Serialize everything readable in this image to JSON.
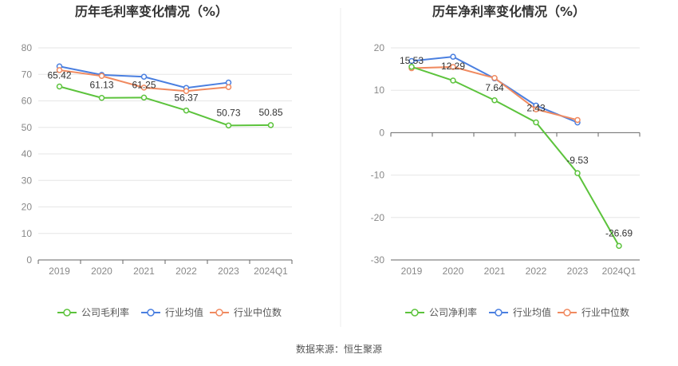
{
  "source_note": "数据来源：恒生聚源",
  "colors": {
    "company": "#5cc33c",
    "industry_avg": "#4a7fe0",
    "industry_median": "#f08a60"
  },
  "chart_data": [
    {
      "type": "line",
      "title": "历年毛利率变化情况（%）",
      "categories": [
        "2019",
        "2020",
        "2021",
        "2022",
        "2023",
        "2024Q1"
      ],
      "ylim": [
        0,
        80
      ],
      "yticks": [
        "0",
        "10",
        "20",
        "30",
        "40",
        "50",
        "60",
        "70",
        "80"
      ],
      "grid": true,
      "legend_position": "bottom",
      "series": [
        {
          "name": "公司毛利率",
          "color": "#5cc33c",
          "values": [
            65.42,
            61.13,
            61.25,
            56.37,
            50.73,
            50.85
          ],
          "labels": [
            "65.42",
            "61.13",
            "61.25",
            "56.37",
            "50.73",
            "50.85"
          ]
        },
        {
          "name": "行业均值",
          "color": "#4a7fe0",
          "values": [
            73.0,
            69.8,
            69.1,
            64.9,
            66.9,
            null
          ]
        },
        {
          "name": "行业中位数",
          "color": "#f08a60",
          "values": [
            71.6,
            69.4,
            65.0,
            63.7,
            65.2,
            null
          ]
        }
      ]
    },
    {
      "type": "line",
      "title": "历年净利率变化情况（%）",
      "categories": [
        "2019",
        "2020",
        "2021",
        "2022",
        "2023",
        "2024Q1"
      ],
      "ylim": [
        -30,
        20
      ],
      "yticks": [
        "-30",
        "-20",
        "-10",
        "0",
        "10",
        "20"
      ],
      "grid": true,
      "legend_position": "bottom",
      "series": [
        {
          "name": "公司净利率",
          "color": "#5cc33c",
          "values": [
            15.53,
            12.29,
            7.64,
            2.43,
            -9.53,
            -26.69
          ],
          "labels": [
            "15.53",
            "12.29",
            "7.64",
            "2.43",
            "-9.53",
            "-26.69"
          ]
        },
        {
          "name": "行业均值",
          "color": "#4a7fe0",
          "values": [
            16.9,
            17.9,
            12.8,
            6.4,
            2.4,
            null
          ]
        },
        {
          "name": "行业中位数",
          "color": "#f08a60",
          "values": [
            15.2,
            15.5,
            12.9,
            5.5,
            3.0,
            null
          ]
        }
      ]
    }
  ]
}
